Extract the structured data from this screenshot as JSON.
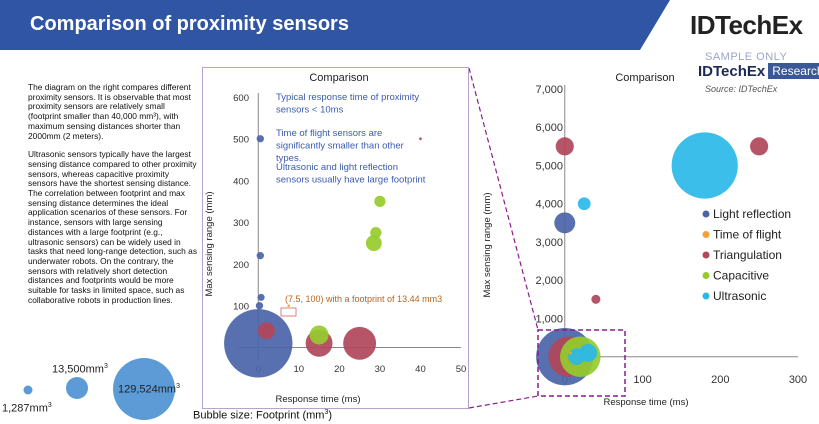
{
  "header": {
    "title": "Comparison of proximity sensors",
    "logo_text": "IDTechEx",
    "sample_text": "SAMPLE ONLY",
    "research_brand": "IDTechEx",
    "research_tag": "Research",
    "source": "Source: IDTechEx",
    "banner_color": "#2f55a4"
  },
  "description": {
    "paragraph_1": "The diagram on the right compares different proximity sensors. It is observable that most proximity sensors are relatively small (footprint smaller than 40,000 mm³), with maximum sensing distances shorter than 2000mm (2 meters).",
    "paragraph_2": "Ultrasonic sensors typically have the largest sensing distance compared to other proximity sensors, whereas capacitive proximity sensors have the shortest sensing distance. The correlation between footprint and max sensing distance determines the ideal application scenarios of these sensors. For instance, sensors with large sensing distances with a large footprint (e.g., ultrasonic sensors) can be widely used in tasks that need long-range detection, such as underwater robots. On the contrary, the sensors with relatively short detection distances and footprints would be more suitable for tasks in limited space, such as collaborative robots in production lines."
  },
  "bubble_legend": {
    "small": "1,287mm",
    "medium": "13,500mm",
    "large": "129,524mm",
    "exponent": "3",
    "size_label": "Bubble size: Footprint (mm",
    "size_label_close": ")"
  },
  "chart_data": [
    {
      "type": "scatter",
      "title": "Comparison",
      "xlabel": "Response time (ms)",
      "ylabel": "Max sensing range (mm)",
      "xlim": [
        -5,
        50
      ],
      "ylim": [
        -30,
        600
      ],
      "x_ticks": [
        "0",
        "10",
        "20",
        "30",
        "40",
        "50"
      ],
      "y_ticks": [
        "100",
        "200",
        "300",
        "400",
        "500",
        "600"
      ],
      "annotations": [
        "Typical response time of proximity sensors < 10ms",
        "Time of flight sensors are significantly smaller than other types.",
        "Ultrasonic and light reflection sensors usually have large footprint",
        "(7.5, 100) with a footprint of 13.44 mm3"
      ],
      "series": [
        {
          "name": "Light reflection",
          "color": "#4a64a8",
          "points": [
            {
              "x": 0.5,
              "y": 500,
              "size": 1500
            },
            {
              "x": 0.5,
              "y": 220,
              "size": 1500
            },
            {
              "x": 0.7,
              "y": 120,
              "size": 1400
            },
            {
              "x": 0.3,
              "y": 100,
              "size": 1500
            },
            {
              "x": 0,
              "y": 10,
              "size": 129524
            }
          ]
        },
        {
          "name": "Time of flight",
          "color": "#f2a13a",
          "points": [
            {
              "x": 7.5,
              "y": 100,
              "size": 13.44
            }
          ]
        },
        {
          "name": "Triangulation",
          "color": "#b0475a",
          "points": [
            {
              "x": 2,
              "y": 40,
              "size": 8000
            },
            {
              "x": 15,
              "y": 10,
              "size": 20000
            },
            {
              "x": 25,
              "y": 10,
              "size": 30000
            },
            {
              "x": 40,
              "y": 500,
              "size": 200
            }
          ]
        },
        {
          "name": "Capacitive",
          "color": "#96cc2c",
          "points": [
            {
              "x": 30,
              "y": 350,
              "size": 3500
            },
            {
              "x": 29,
              "y": 275,
              "size": 3500
            },
            {
              "x": 28.5,
              "y": 250,
              "size": 7000
            },
            {
              "x": 15,
              "y": 30,
              "size": 10000
            }
          ]
        }
      ]
    },
    {
      "type": "scatter",
      "title": "Comparison",
      "xlabel": "Response time (ms)",
      "ylabel": "Max sensing range (mm)",
      "xlim": [
        -10,
        300
      ],
      "ylim": [
        -400,
        7000
      ],
      "x_ticks": [
        "0",
        "100",
        "200",
        "300"
      ],
      "y_ticks": [
        "1,000",
        "2,000",
        "3,000",
        "4,000",
        "5,000",
        "6,000",
        "7,000"
      ],
      "legend_position": "right",
      "series": [
        {
          "name": "Light reflection",
          "color": "#4a64a8",
          "points": [
            {
              "x": 0,
              "y": 3500,
              "size": 8000
            },
            {
              "x": 0,
              "y": 0,
              "size": 60000
            }
          ]
        },
        {
          "name": "Time of flight",
          "color": "#f2a13a",
          "points": [
            {
              "x": 7.5,
              "y": 100,
              "size": 13.44
            }
          ]
        },
        {
          "name": "Triangulation",
          "color": "#b0475a",
          "points": [
            {
              "x": 0,
              "y": 5500,
              "size": 6000
            },
            {
              "x": 250,
              "y": 5500,
              "size": 6000
            },
            {
              "x": 40,
              "y": 1500,
              "size": 1500
            },
            {
              "x": 5,
              "y": 0,
              "size": 30000
            }
          ]
        },
        {
          "name": "Capacitive",
          "color": "#96cc2c",
          "points": [
            {
              "x": 20,
              "y": 0,
              "size": 30000
            }
          ]
        },
        {
          "name": "Ultrasonic",
          "color": "#2bb8e8",
          "points": [
            {
              "x": 25,
              "y": 4000,
              "size": 3000
            },
            {
              "x": 180,
              "y": 5000,
              "size": 80000
            },
            {
              "x": 30,
              "y": 100,
              "size": 6000
            },
            {
              "x": 15,
              "y": 0,
              "size": 5000
            }
          ]
        }
      ]
    }
  ]
}
